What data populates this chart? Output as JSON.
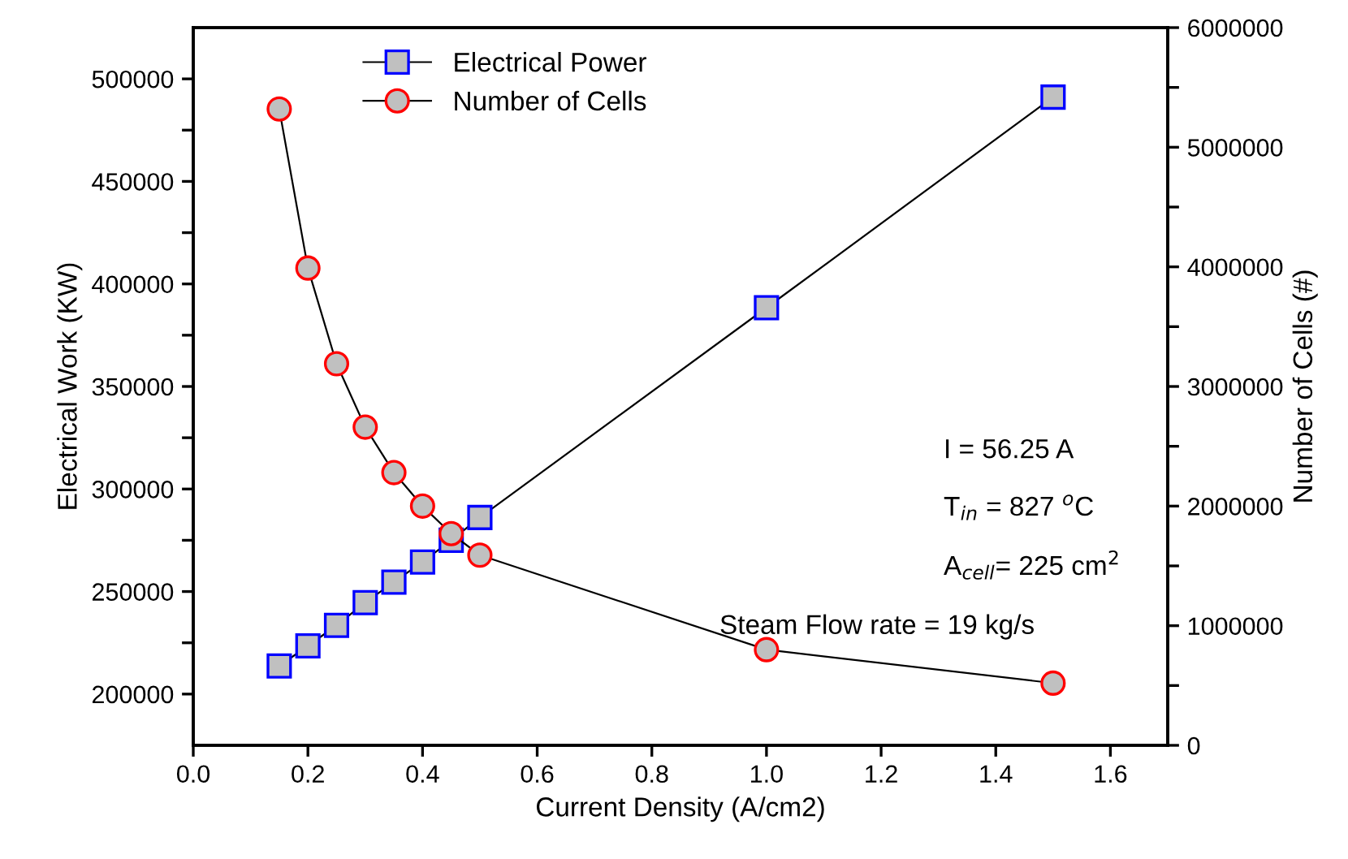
{
  "chart_data": {
    "type": "line",
    "xlabel": "Current Density (A/cm2)",
    "ylabel": "Electrical Work (KW)",
    "y2label": "Number of Cells (#)",
    "x": [
      0.15,
      0.2,
      0.25,
      0.3,
      0.35,
      0.4,
      0.45,
      0.5,
      1.0,
      1.5
    ],
    "series": [
      {
        "name": "Electrical Power",
        "color": "#0000ff",
        "marker": "square",
        "values": [
          213700,
          223500,
          233500,
          244600,
          254600,
          264400,
          275000,
          286100,
          388400,
          491100
        ]
      },
      {
        "name": "Number of Cells",
        "color": "#ff0000",
        "marker": "circle",
        "axis": "y2",
        "values": [
          5320000,
          3990000,
          3190000,
          2660000,
          2280000,
          2000000,
          1770000,
          1590000,
          800000,
          520000
        ]
      }
    ],
    "xlim": [
      0,
      1.7
    ],
    "xticks": [
      {
        "value": 0,
        "label": "0.0"
      },
      0.2,
      0.4,
      0.6,
      0.8,
      {
        "value": 1,
        "label": "1.0"
      },
      1.2,
      1.4,
      1.6
    ],
    "ylim": [
      175000,
      525000
    ],
    "yticks": [
      200000,
      {
        "value": 225000,
        "label": null
      },
      250000,
      {
        "value": 275000,
        "label": null
      },
      300000,
      {
        "value": 325000,
        "label": null
      },
      350000,
      {
        "value": 375000,
        "label": null
      },
      400000,
      {
        "value": 425000,
        "label": null
      },
      450000,
      {
        "value": 475000,
        "label": null
      },
      500000
    ],
    "y2lim": [
      0,
      6000000
    ],
    "y2ticks": [
      0,
      {
        "value": 500000,
        "label": null
      },
      1000000,
      {
        "value": 1500000,
        "label": null
      },
      2000000,
      {
        "value": 2500000,
        "label": null
      },
      3000000,
      {
        "value": 3500000,
        "label": null
      },
      4000000,
      {
        "value": 4500000,
        "label": null
      },
      5000000,
      {
        "value": 5500000,
        "label": null
      },
      6000000
    ],
    "annotations": [
      "I = 56.25 A",
      "T$_{in}$ = 827 $^{o}$C",
      "A$_{cell}$= 225 cm$^{2}$",
      "Steam Flow rate = 19 kg/s"
    ],
    "legend": "top",
    "grid": false,
    "line_style": "solid"
  }
}
